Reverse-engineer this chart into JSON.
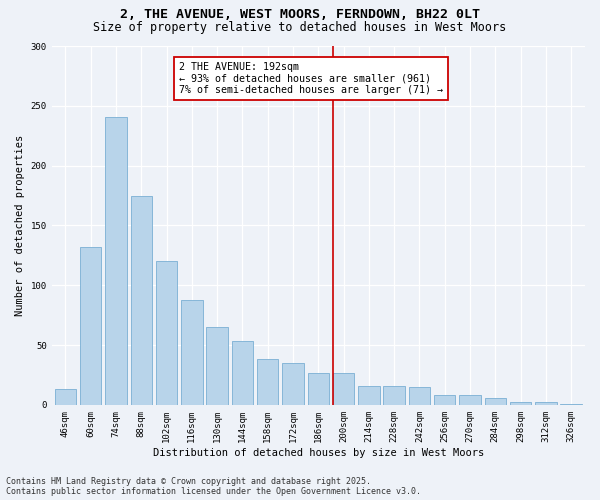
{
  "title": "2, THE AVENUE, WEST MOORS, FERNDOWN, BH22 0LT",
  "subtitle": "Size of property relative to detached houses in West Moors",
  "xlabel": "Distribution of detached houses by size in West Moors",
  "ylabel": "Number of detached properties",
  "bar_labels": [
    "46sqm",
    "60sqm",
    "74sqm",
    "88sqm",
    "102sqm",
    "116sqm",
    "130sqm",
    "144sqm",
    "158sqm",
    "172sqm",
    "186sqm",
    "200sqm",
    "214sqm",
    "228sqm",
    "242sqm",
    "256sqm",
    "270sqm",
    "284sqm",
    "298sqm",
    "312sqm",
    "326sqm"
  ],
  "bar_values": [
    13,
    132,
    241,
    175,
    120,
    88,
    65,
    53,
    38,
    35,
    27,
    27,
    16,
    16,
    15,
    8,
    8,
    6,
    2,
    2,
    1
  ],
  "bar_color": "#b8d4ea",
  "bar_edgecolor": "#7aafd4",
  "vline_x": 10.57,
  "vline_color": "#cc0000",
  "annotation_text": "2 THE AVENUE: 192sqm\n← 93% of detached houses are smaller (961)\n7% of semi-detached houses are larger (71) →",
  "annotation_box_color": "#cc0000",
  "ylim": [
    0,
    300
  ],
  "yticks": [
    0,
    50,
    100,
    150,
    200,
    250,
    300
  ],
  "background_color": "#eef2f8",
  "grid_color": "#ffffff",
  "footer_line1": "Contains HM Land Registry data © Crown copyright and database right 2025.",
  "footer_line2": "Contains public sector information licensed under the Open Government Licence v3.0.",
  "title_fontsize": 9.5,
  "subtitle_fontsize": 8.5,
  "axis_label_fontsize": 7.5,
  "tick_fontsize": 6.5,
  "annotation_fontsize": 7.2,
  "footer_fontsize": 6.0
}
